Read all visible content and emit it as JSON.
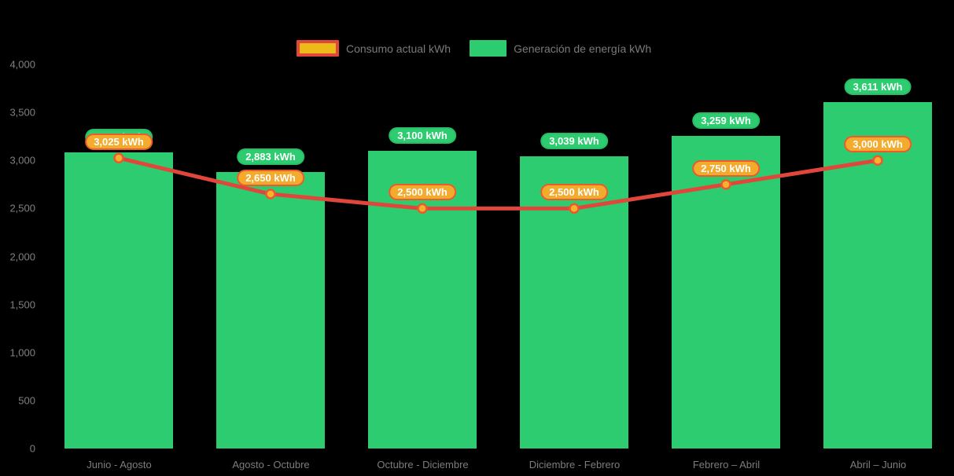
{
  "chart_data": {
    "type": "bar+line",
    "title": "",
    "categories": [
      "Junio - Agosto",
      "Agosto - Octubre",
      "Octubre - Diciembre",
      "Diciembre - Febrero",
      "Febrero – Abril",
      "Abril – Junio"
    ],
    "series": [
      {
        "name": "Consumo actual kWh",
        "type": "line",
        "values": [
          3025,
          2650,
          2500,
          2500,
          2750,
          3000
        ],
        "labels": [
          "3,025 kWh",
          "2,650 kWh",
          "2,500 kWh",
          "2,500 kWh",
          "2,750 kWh",
          "3,000 kWh"
        ],
        "line_color": "#e0473a",
        "marker_fill": "#f6b12e",
        "marker_stroke": "#ea5a2d",
        "label_fill": "#f3ab2d",
        "label_border": "#ee5a2c"
      },
      {
        "name": "Generación de energía kWh",
        "type": "bar",
        "values": [
          3087,
          2883,
          3100,
          3039,
          3259,
          3611
        ],
        "labels": [
          "3,087 kWh",
          "2,883 kWh",
          "3,100 kWh",
          "3,039 kWh",
          "3,259 kWh",
          "3,611 kWh"
        ],
        "bar_color": "#2ecc71"
      }
    ],
    "xlabel": "",
    "ylabel": "",
    "ylim": [
      0,
      4000
    ],
    "ytick_step": 500,
    "yticks": [
      "0",
      "500",
      "1,000",
      "1,500",
      "2,000",
      "2,500",
      "3,000",
      "3,500",
      "4,000"
    ],
    "grid": false,
    "legend_position": "top-center",
    "background_color": "#000000",
    "axis_text_color": "#808080"
  }
}
